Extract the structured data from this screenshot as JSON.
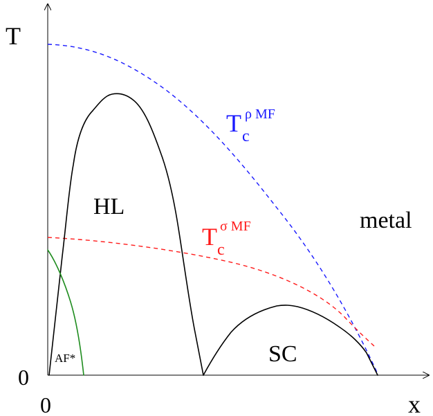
{
  "axes": {
    "y_label": "T",
    "x_label": "x",
    "origin_y_label": "0",
    "origin_x_label": "0"
  },
  "regions": {
    "hl": "HL",
    "sc": "SC",
    "af": "AF*",
    "metal": "metal"
  },
  "mf_lines": {
    "rho": {
      "base": "T",
      "sub": "c",
      "sup": "ρ MF",
      "color": "#1a1aff"
    },
    "sigma": {
      "base": "T",
      "sub": "c",
      "sup": "σ MF",
      "color": "#ff1a1a"
    }
  },
  "colors": {
    "boundary": "#000000",
    "af_boundary": "#1e8c1e"
  }
}
